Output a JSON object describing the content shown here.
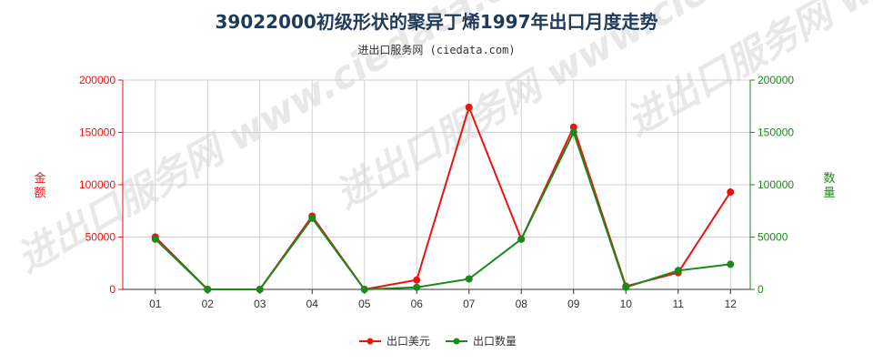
{
  "title": "39022000初级形状的聚异丁烯1997年出口月度走势",
  "subtitle": "进出口服务网 (ciedata.com)",
  "watermark": "进出口服务网 www.ciedata.com",
  "chart_data": {
    "type": "line",
    "categories": [
      "01",
      "02",
      "03",
      "04",
      "05",
      "06",
      "07",
      "08",
      "09",
      "10",
      "11",
      "12"
    ],
    "series": [
      {
        "name": "出口美元",
        "axis": "left",
        "color": "#ee1111",
        "values": [
          50000,
          0,
          0,
          70000,
          0,
          9000,
          174000,
          48000,
          155000,
          3000,
          16000,
          93000
        ]
      },
      {
        "name": "出口数量",
        "axis": "right",
        "color": "#1a8a1a",
        "values": [
          48000,
          0,
          0,
          68000,
          0,
          2000,
          10000,
          48000,
          150000,
          2000,
          18000,
          24000
        ]
      }
    ],
    "ylabel_left": "金额",
    "ylabel_right": "数量",
    "ylim": [
      0,
      200000
    ],
    "yticks": [
      "0",
      "50000",
      "100000",
      "150000",
      "200000"
    ],
    "grid": true,
    "legend_position": "bottom-center",
    "left_axis_color": "#ee1111",
    "right_axis_color": "#1a8a1a"
  }
}
